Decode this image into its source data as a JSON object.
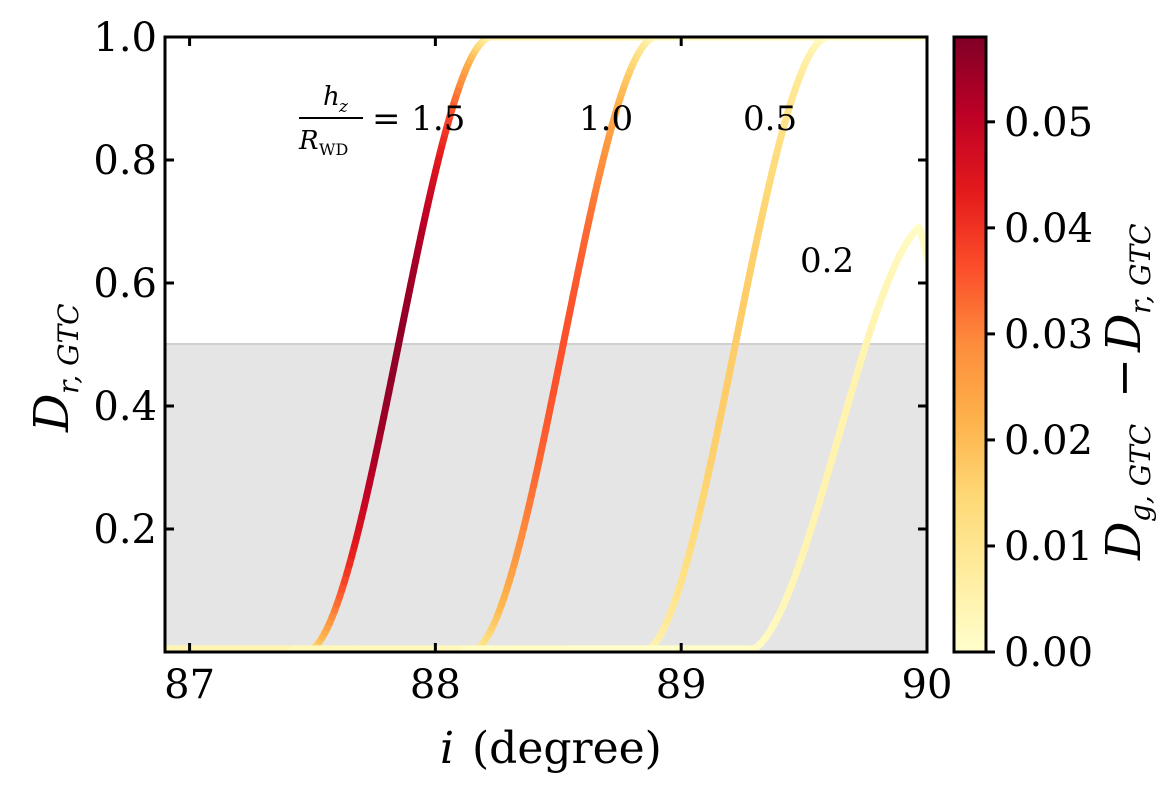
{
  "chart_data": {
    "type": "line",
    "xlim": [
      86.9,
      90.0
    ],
    "ylim": [
      0.0,
      1.0
    ],
    "xticks": [
      87,
      88,
      89,
      90
    ],
    "yticks": [
      0.2,
      0.4,
      0.6,
      0.8,
      1.0
    ],
    "xlabel": {
      "var": "i",
      "unit": "(degree)"
    },
    "ylabel": {
      "var": "D",
      "sub": "r, GTC"
    },
    "shaded_region": {
      "y_from": 0.0,
      "y_to": 0.5,
      "color": "#e5e5e5"
    },
    "series": [
      {
        "name": "1.5",
        "label_prefix": "h",
        "label_prefix_sub": "z",
        "label_denominator": "R",
        "label_denominator_sub": "WD",
        "label_eq": "= 1.5",
        "center": 87.85,
        "amp": 1.0,
        "ymax": 1.0,
        "cmax": 0.056
      },
      {
        "name": "1.0",
        "label": "1.0",
        "center": 88.52,
        "amp": 1.0,
        "ymax": 1.0,
        "cmax": 0.036
      },
      {
        "name": "0.5",
        "label": "0.5",
        "center": 89.22,
        "amp": 1.0,
        "ymax": 1.0,
        "cmax": 0.017
      },
      {
        "name": "0.2",
        "label": "0.2",
        "center": 89.64,
        "amp": 0.7,
        "ymax": 0.71,
        "cmax": 0.005
      }
    ],
    "colorbar": {
      "label": {
        "var1": "D",
        "sub1": "g, GTC",
        "minus": "−",
        "var2": "D",
        "sub2": "r, GTC"
      },
      "ticks": [
        "0.00",
        "0.01",
        "0.02",
        "0.03",
        "0.04",
        "0.05"
      ],
      "tick_values": [
        0.0,
        0.01,
        0.02,
        0.03,
        0.04,
        0.05
      ],
      "vmin": 0.0,
      "vmax": 0.058,
      "cmap": [
        "#ffffcc",
        "#ffeda0",
        "#fed976",
        "#feb24c",
        "#fd8d3c",
        "#fc4e2a",
        "#e31a1c",
        "#bd0026",
        "#800026"
      ]
    }
  }
}
